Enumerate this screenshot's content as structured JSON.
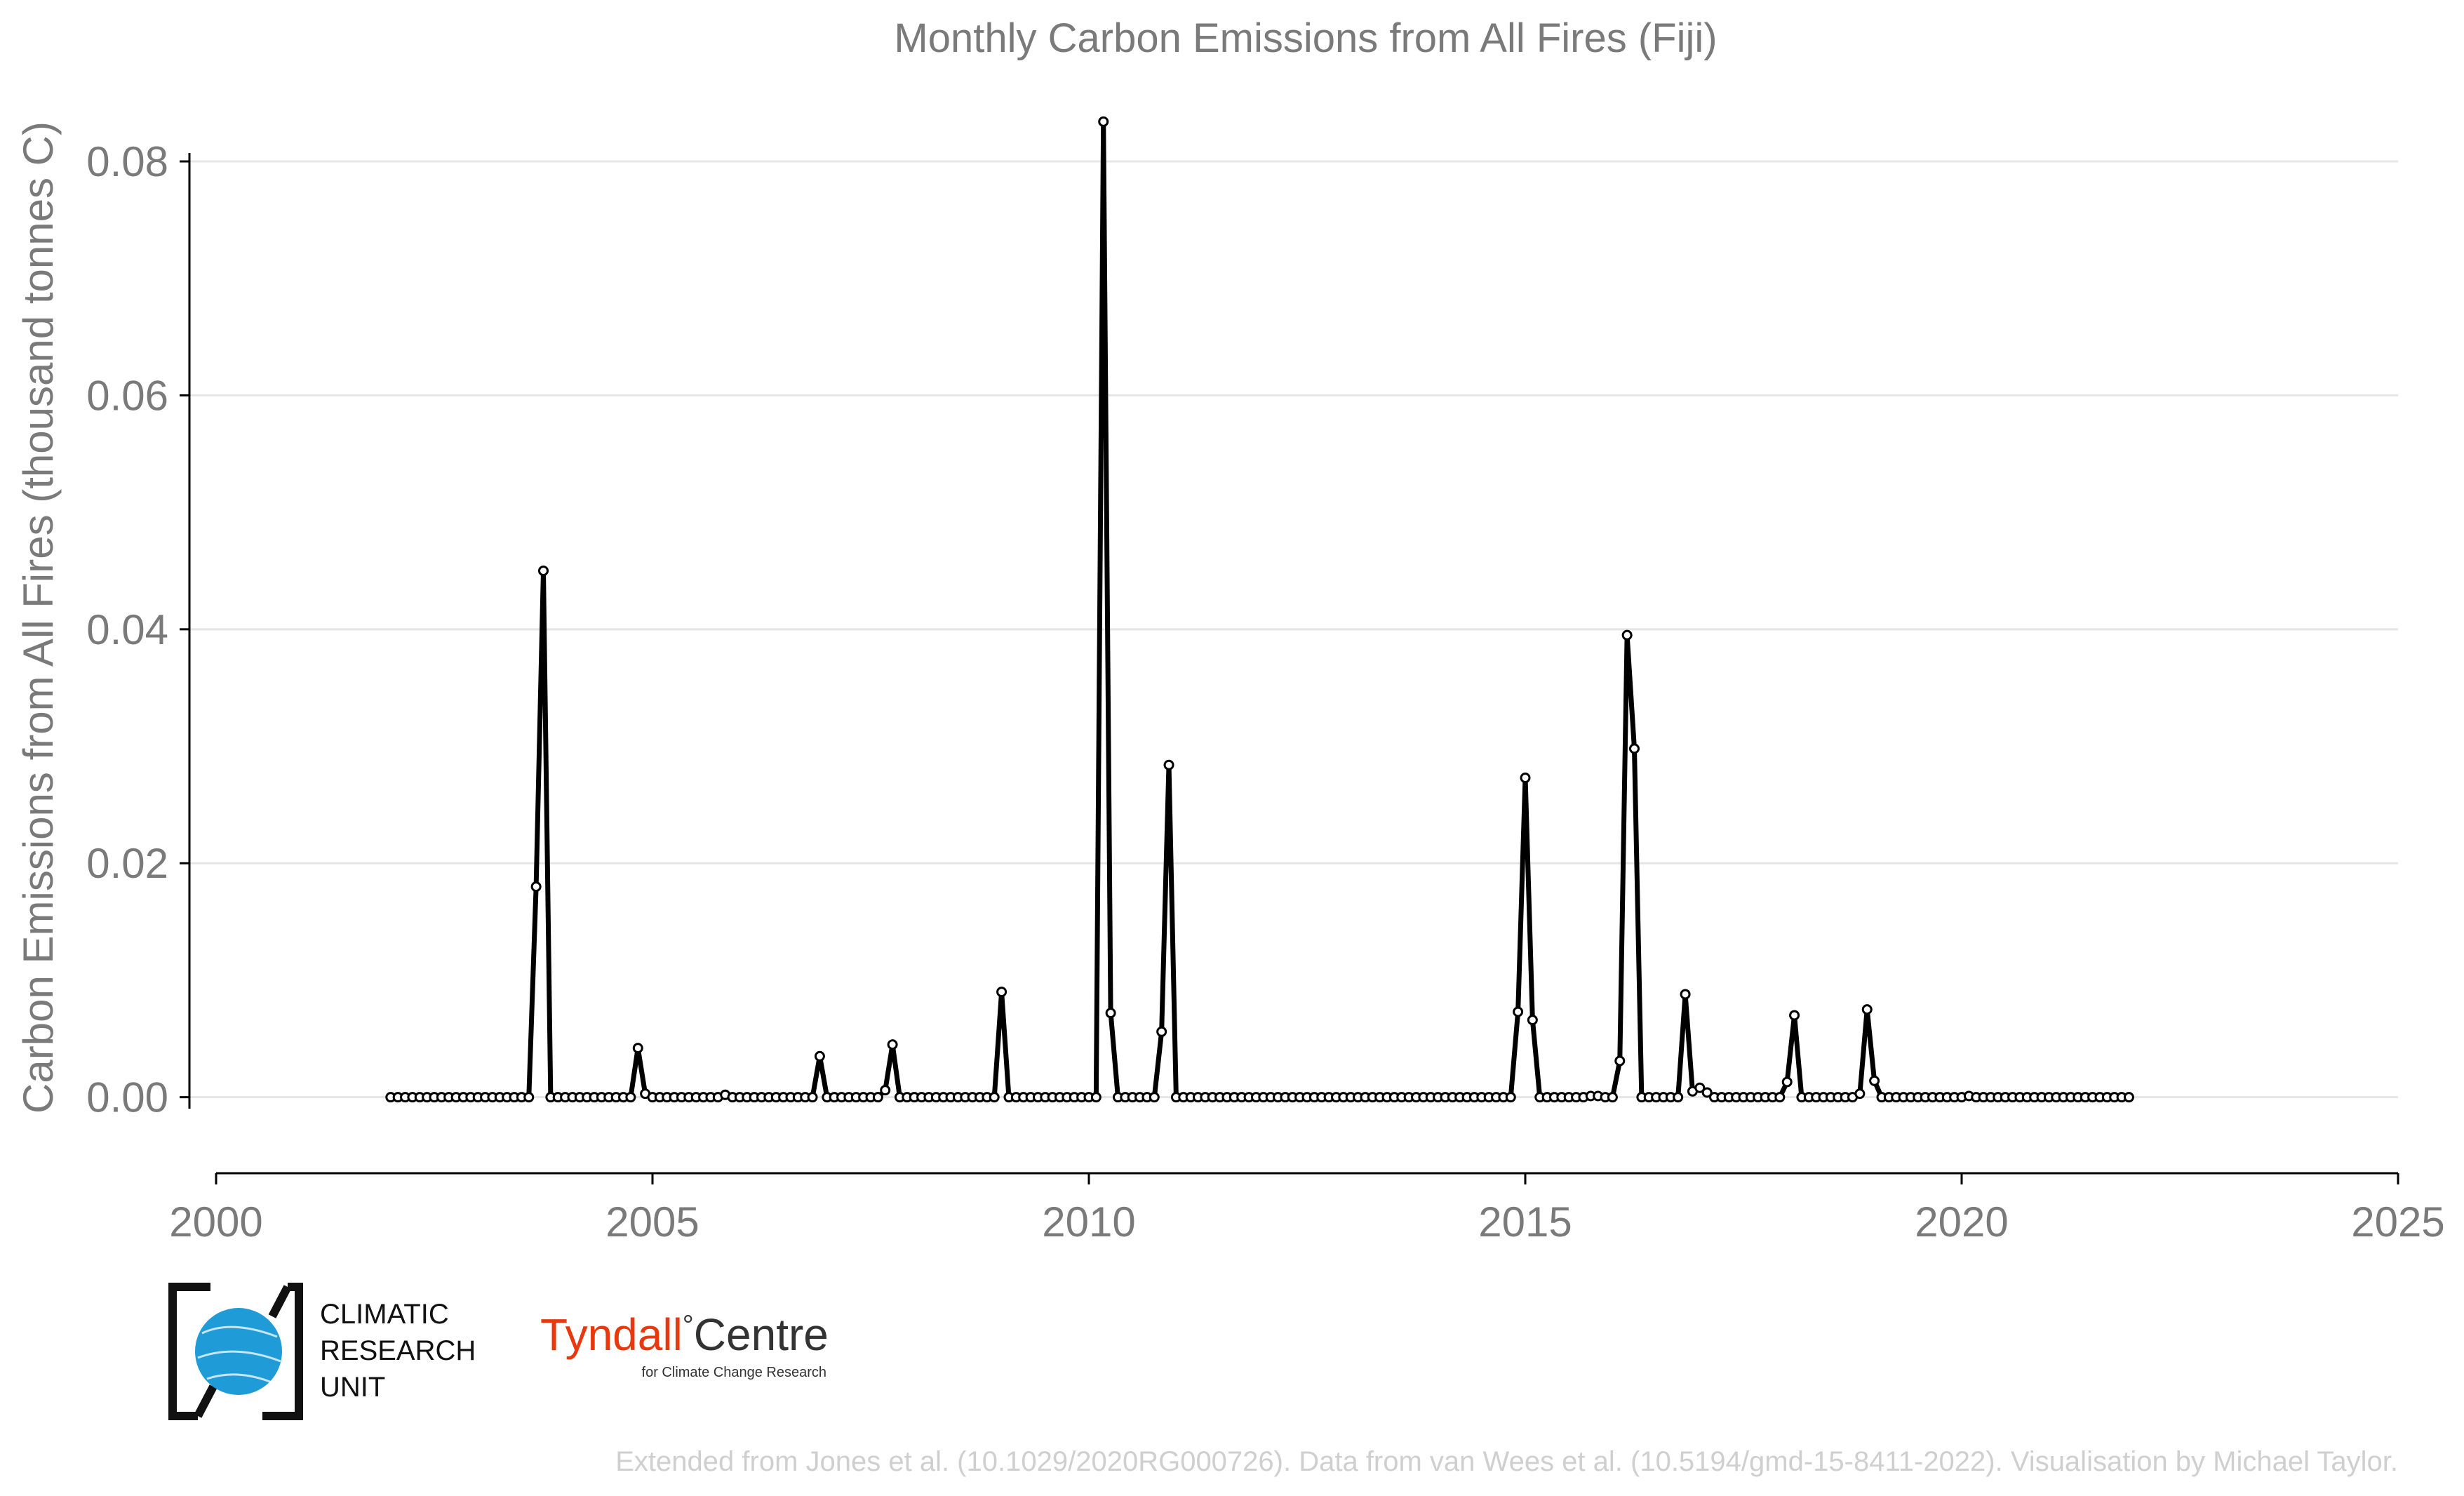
{
  "chart_data": {
    "type": "line",
    "title": "Monthly Carbon Emissions from All Fires (Fiji)",
    "xlabel": "",
    "ylabel": "Carbon Emissions from All Fires (thousand tonnes C)",
    "xlim": [
      2000,
      2025
    ],
    "ylim": [
      -0.0065,
      0.086
    ],
    "xticks": [
      2000,
      2005,
      2010,
      2015,
      2020,
      2025
    ],
    "xtick_labels": [
      "2000",
      "2005",
      "2010",
      "2015",
      "2020",
      "2025"
    ],
    "yticks": [
      0,
      0.02,
      0.04,
      0.06,
      0.08
    ],
    "ytick_labels": [
      "0.00",
      "0.02",
      "0.04",
      "0.06",
      "0.08"
    ],
    "grid": "horizontal",
    "line_color": "#000000",
    "marker_fill": "#ffffff",
    "x_start": "2002-01",
    "x_step": "monthly",
    "values": [
      0,
      0,
      0,
      0,
      0,
      0,
      0,
      0,
      0,
      0,
      0,
      0,
      0,
      0,
      0,
      0,
      0,
      0,
      0,
      0,
      0.018,
      0.045,
      0,
      0,
      0,
      0,
      0,
      0,
      0,
      0,
      0,
      0,
      0,
      0,
      0.0042,
      0.0003,
      0,
      0,
      0,
      0,
      0,
      0,
      0,
      0,
      0,
      0,
      0.0002,
      0,
      0,
      0,
      0,
      0,
      0,
      0,
      0,
      0,
      0,
      0,
      0,
      0.0035,
      0,
      0,
      0,
      0,
      0,
      0,
      0,
      0,
      0.0006,
      0.0045,
      0,
      0,
      0,
      0,
      0,
      0,
      0,
      0,
      0,
      0,
      0,
      0,
      0,
      0,
      0.009,
      0,
      0,
      0,
      0,
      0,
      0,
      0,
      0,
      0,
      0,
      0,
      0,
      0,
      0.0834,
      0.0072,
      0,
      0,
      0,
      0,
      0,
      0,
      0.0056,
      0.0284,
      0,
      0,
      0,
      0,
      0,
      0,
      0,
      0,
      0,
      0,
      0,
      0,
      0,
      0,
      0,
      0,
      0,
      0,
      0,
      0,
      0,
      0,
      0,
      0,
      0,
      0,
      0,
      0,
      0,
      0,
      0,
      0,
      0,
      0,
      0,
      0,
      0,
      0,
      0,
      0,
      0,
      0,
      0,
      0,
      0,
      0,
      0,
      0.0073,
      0.0273,
      0.0066,
      0,
      0,
      0,
      0,
      0,
      0,
      0,
      0.0001,
      0.0001,
      0,
      0,
      0.0031,
      0.0395,
      0.0298,
      0,
      0,
      0,
      0,
      0,
      0,
      0.0088,
      0.0005,
      0.0008,
      0.0004,
      0,
      0,
      0,
      0,
      0,
      0,
      0,
      0,
      0,
      0,
      0.0013,
      0.007,
      0,
      0,
      0,
      0,
      0,
      0,
      0,
      0,
      0.0003,
      0.0075,
      0.0014,
      0,
      0,
      0,
      0,
      0,
      0,
      0,
      0,
      0,
      0,
      0,
      0,
      0.0001,
      0,
      0,
      0,
      0,
      0,
      0,
      0,
      0,
      0,
      0,
      0,
      0,
      0,
      0,
      0,
      0,
      0,
      0,
      0,
      0,
      0,
      0
    ]
  },
  "logos": {
    "cru": {
      "lines": [
        "CLIMATIC",
        "RESEARCH",
        "UNIT"
      ],
      "globe_color": "#1f9bd7"
    },
    "tyndall": {
      "name_a": "Tyndall",
      "degree": "°",
      "name_b": "Centre",
      "subtitle": "for Climate Change Research",
      "accent": "#e8380d"
    }
  },
  "footer": "Extended from Jones et al. (10.1029/2020RG000726). Data from van Wees et al. (10.5194/gmd-15-8411-2022). Visualisation by Michael Taylor."
}
